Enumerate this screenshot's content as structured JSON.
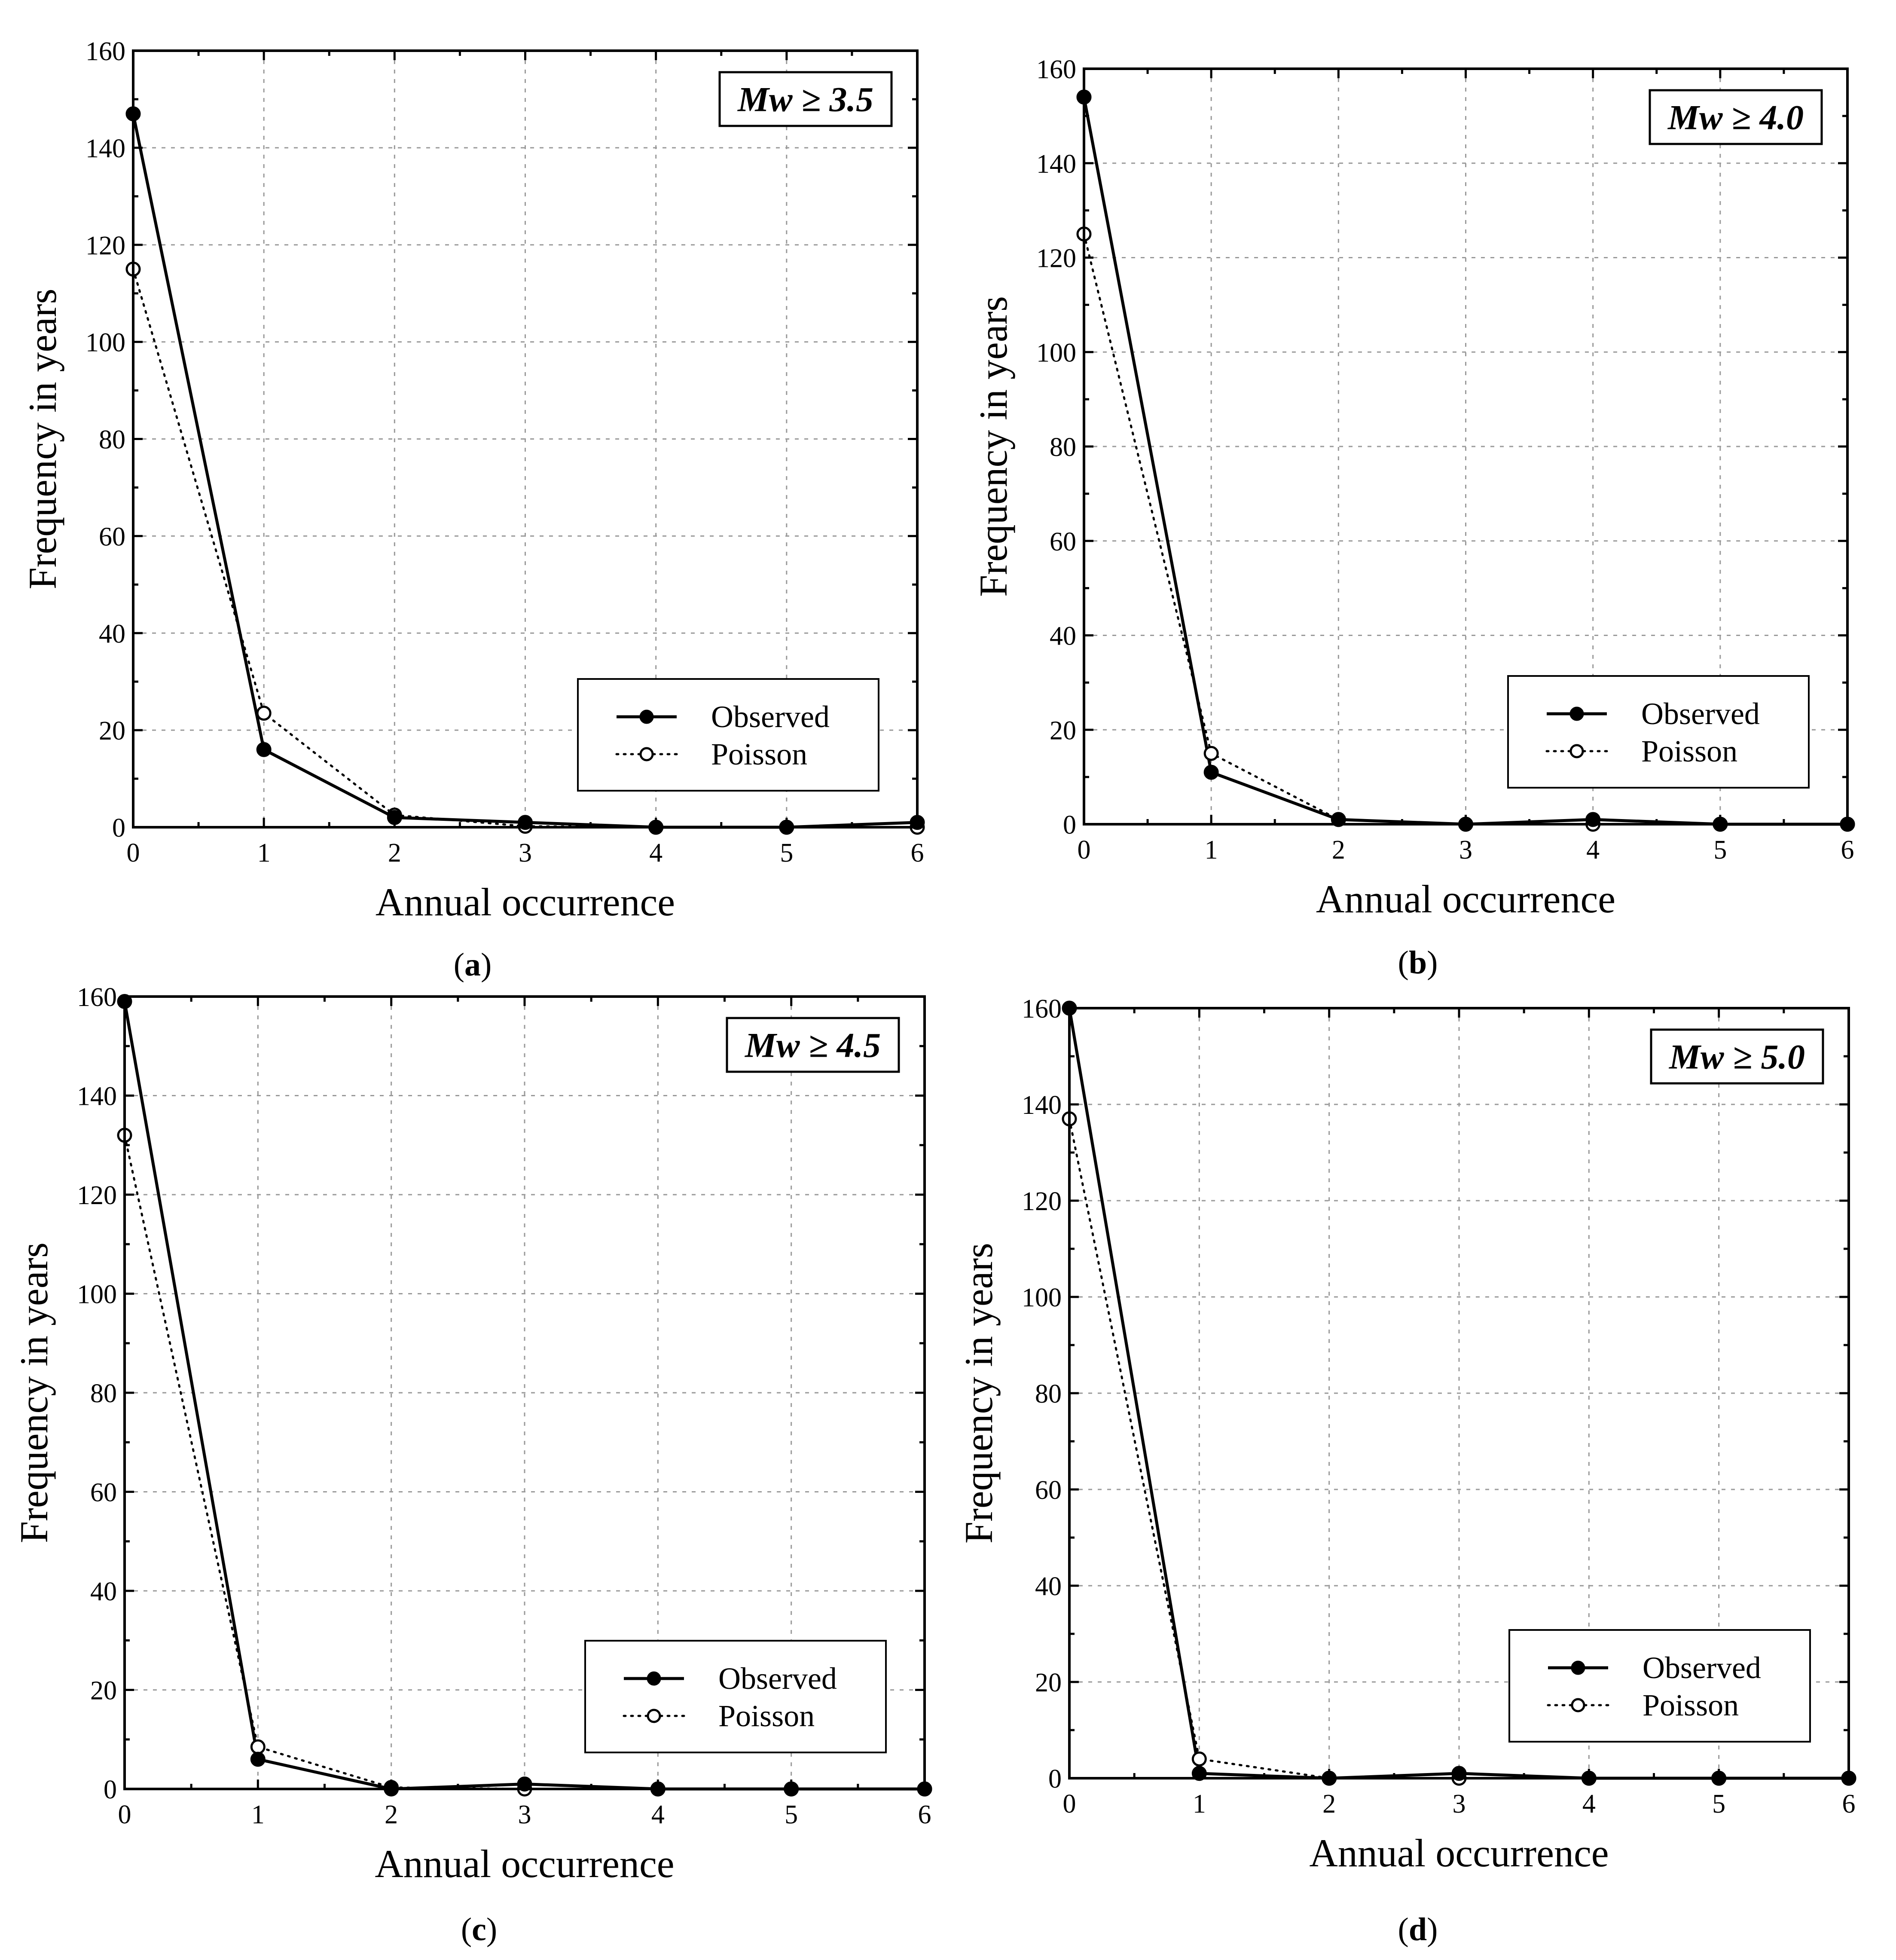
{
  "chart_data": [
    {
      "type": "line",
      "panel_label": "a",
      "annotation": "Mw ≥ 3.5",
      "x": [
        0,
        1,
        2,
        3,
        4,
        5,
        6
      ],
      "series": [
        {
          "name": "Observed",
          "values": [
            147,
            16,
            2,
            1,
            0,
            0,
            1
          ]
        },
        {
          "name": "Poisson",
          "values": [
            115,
            23.5,
            2.5,
            0.2,
            0,
            0,
            0
          ]
        }
      ],
      "xlabel": "Annual occurrence",
      "ylabel": "Frequency in years",
      "xlim": [
        0,
        6
      ],
      "ylim": [
        0,
        160
      ],
      "xticks": [
        0,
        1,
        2,
        3,
        4,
        5,
        6
      ],
      "yticks": [
        0,
        20,
        40,
        60,
        80,
        100,
        120,
        140,
        160
      ],
      "grid": true,
      "legend_position": "bottom-right"
    },
    {
      "type": "line",
      "panel_label": "b",
      "annotation": "Mw ≥ 4.0",
      "x": [
        0,
        1,
        2,
        3,
        4,
        5,
        6
      ],
      "series": [
        {
          "name": "Observed",
          "values": [
            154,
            11,
            1,
            0,
            1,
            0,
            0
          ]
        },
        {
          "name": "Poisson",
          "values": [
            125,
            15,
            1,
            0,
            0,
            0,
            0
          ]
        }
      ],
      "xlabel": "Annual occurrence",
      "ylabel": "Frequency in years",
      "xlim": [
        0,
        6
      ],
      "ylim": [
        0,
        160
      ],
      "xticks": [
        0,
        1,
        2,
        3,
        4,
        5,
        6
      ],
      "yticks": [
        0,
        20,
        40,
        60,
        80,
        100,
        120,
        140,
        160
      ],
      "grid": true,
      "legend_position": "bottom-right"
    },
    {
      "type": "line",
      "panel_label": "c",
      "annotation": "Mw ≥ 4.5",
      "x": [
        0,
        1,
        2,
        3,
        4,
        5,
        6
      ],
      "series": [
        {
          "name": "Observed",
          "values": [
            159,
            6,
            0,
            1,
            0,
            0,
            0
          ]
        },
        {
          "name": "Poisson",
          "values": [
            132,
            8.5,
            0.3,
            0,
            0,
            0,
            0
          ]
        }
      ],
      "xlabel": "Annual occurrence",
      "ylabel": "Frequency in years",
      "xlim": [
        0,
        6
      ],
      "ylim": [
        0,
        160
      ],
      "xticks": [
        0,
        1,
        2,
        3,
        4,
        5,
        6
      ],
      "yticks": [
        0,
        20,
        40,
        60,
        80,
        100,
        120,
        140,
        160
      ],
      "grid": true,
      "legend_position": "bottom-right"
    },
    {
      "type": "line",
      "panel_label": "d",
      "annotation": "Mw ≥ 5.0",
      "x": [
        0,
        1,
        2,
        3,
        4,
        5,
        6
      ],
      "series": [
        {
          "name": "Observed",
          "values": [
            160,
            1,
            0,
            1,
            0,
            0,
            0
          ]
        },
        {
          "name": "Poisson",
          "values": [
            137,
            4,
            0,
            0,
            0,
            0,
            0
          ]
        }
      ],
      "xlabel": "Annual occurrence",
      "ylabel": "Frequency in years",
      "xlim": [
        0,
        6
      ],
      "ylim": [
        0,
        160
      ],
      "xticks": [
        0,
        1,
        2,
        3,
        4,
        5,
        6
      ],
      "yticks": [
        0,
        20,
        40,
        60,
        80,
        100,
        120,
        140,
        160
      ],
      "grid": true,
      "legend_position": "bottom-right"
    }
  ]
}
